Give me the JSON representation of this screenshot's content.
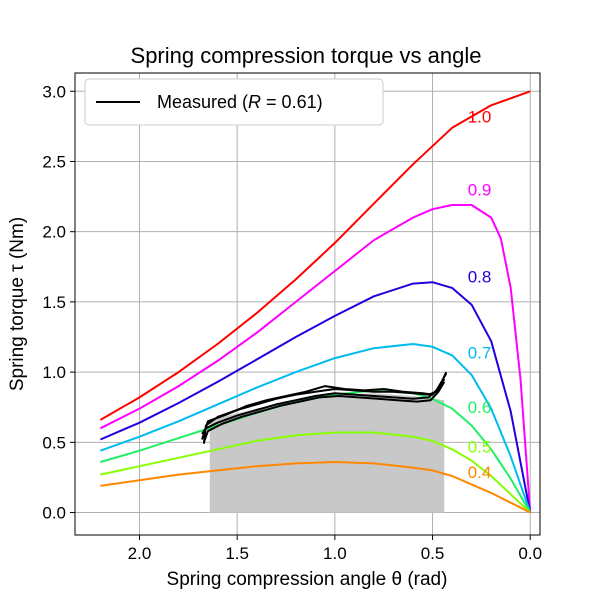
{
  "chart_data": {
    "type": "line",
    "title": "Spring compression torque vs angle",
    "xlabel": "Spring compression angle θ (rad)",
    "ylabel": "Spring torque τ (Nm)",
    "xlim": [
      2.33,
      -0.05
    ],
    "ylim": [
      -0.16,
      3.13
    ],
    "x_inverted": true,
    "grid": true,
    "xticks": [
      2.0,
      1.5,
      1.0,
      0.5,
      0.0
    ],
    "xtick_labels": [
      "2.0",
      "1.5",
      "1.0",
      "0.5",
      "0.0"
    ],
    "yticks": [
      0.0,
      0.5,
      1.0,
      1.5,
      2.0,
      2.5,
      3.0
    ],
    "ytick_labels": [
      "0.0",
      "0.5",
      "1.0",
      "1.5",
      "2.0",
      "2.5",
      "3.0"
    ],
    "legend": {
      "placement": "top-left",
      "entries": [
        {
          "label_prefix": "Measured (",
          "label_var": "R",
          "label_suffix": " = 0.61)",
          "color": "#000000"
        }
      ]
    },
    "series": [
      {
        "label": "1.0",
        "color": "#ff0000",
        "label_x": 0.32,
        "label_y": 2.82,
        "points": [
          [
            2.2,
            0.66
          ],
          [
            2.0,
            0.82
          ],
          [
            1.8,
            1.0
          ],
          [
            1.6,
            1.2
          ],
          [
            1.4,
            1.42
          ],
          [
            1.2,
            1.66
          ],
          [
            1.0,
            1.92
          ],
          [
            0.8,
            2.2
          ],
          [
            0.6,
            2.48
          ],
          [
            0.4,
            2.74
          ],
          [
            0.2,
            2.9
          ],
          [
            0.0,
            3.0
          ]
        ]
      },
      {
        "label": "0.9",
        "color": "#ff00ff",
        "label_x": 0.32,
        "label_y": 2.3,
        "points": [
          [
            2.2,
            0.6
          ],
          [
            2.0,
            0.74
          ],
          [
            1.8,
            0.9
          ],
          [
            1.6,
            1.08
          ],
          [
            1.4,
            1.28
          ],
          [
            1.2,
            1.5
          ],
          [
            1.0,
            1.72
          ],
          [
            0.8,
            1.94
          ],
          [
            0.6,
            2.1
          ],
          [
            0.5,
            2.16
          ],
          [
            0.4,
            2.19
          ],
          [
            0.3,
            2.19
          ],
          [
            0.2,
            2.1
          ],
          [
            0.15,
            1.95
          ],
          [
            0.1,
            1.6
          ],
          [
            0.05,
            0.95
          ],
          [
            0.0,
            0.0
          ]
        ]
      },
      {
        "label": "0.8",
        "color": "#2200dd",
        "label_x": 0.32,
        "label_y": 1.68,
        "points": [
          [
            2.2,
            0.52
          ],
          [
            2.0,
            0.64
          ],
          [
            1.8,
            0.78
          ],
          [
            1.6,
            0.93
          ],
          [
            1.4,
            1.09
          ],
          [
            1.2,
            1.25
          ],
          [
            1.0,
            1.4
          ],
          [
            0.8,
            1.54
          ],
          [
            0.6,
            1.63
          ],
          [
            0.5,
            1.64
          ],
          [
            0.4,
            1.6
          ],
          [
            0.3,
            1.48
          ],
          [
            0.2,
            1.22
          ],
          [
            0.1,
            0.72
          ],
          [
            0.0,
            0.0
          ]
        ]
      },
      {
        "label": "0.7",
        "color": "#00bbee",
        "label_x": 0.32,
        "label_y": 1.14,
        "points": [
          [
            2.2,
            0.44
          ],
          [
            2.0,
            0.54
          ],
          [
            1.8,
            0.65
          ],
          [
            1.6,
            0.77
          ],
          [
            1.4,
            0.89
          ],
          [
            1.2,
            1.0
          ],
          [
            1.0,
            1.1
          ],
          [
            0.8,
            1.17
          ],
          [
            0.6,
            1.2
          ],
          [
            0.5,
            1.18
          ],
          [
            0.4,
            1.12
          ],
          [
            0.3,
            0.98
          ],
          [
            0.2,
            0.74
          ],
          [
            0.1,
            0.4
          ],
          [
            0.0,
            0.0
          ]
        ]
      },
      {
        "label": "0.6",
        "color": "#22ee66",
        "label_x": 0.32,
        "label_y": 0.75,
        "points": [
          [
            2.2,
            0.36
          ],
          [
            2.0,
            0.44
          ],
          [
            1.8,
            0.53
          ],
          [
            1.6,
            0.62
          ],
          [
            1.4,
            0.71
          ],
          [
            1.2,
            0.79
          ],
          [
            1.0,
            0.84
          ],
          [
            0.8,
            0.87
          ],
          [
            0.6,
            0.85
          ],
          [
            0.5,
            0.81
          ],
          [
            0.4,
            0.74
          ],
          [
            0.3,
            0.62
          ],
          [
            0.2,
            0.45
          ],
          [
            0.1,
            0.24
          ],
          [
            0.0,
            0.0
          ]
        ]
      },
      {
        "label": "0.5",
        "color": "#88ff00",
        "label_x": 0.32,
        "label_y": 0.47,
        "points": [
          [
            2.2,
            0.27
          ],
          [
            2.0,
            0.33
          ],
          [
            1.8,
            0.39
          ],
          [
            1.6,
            0.45
          ],
          [
            1.4,
            0.51
          ],
          [
            1.2,
            0.55
          ],
          [
            1.0,
            0.57
          ],
          [
            0.8,
            0.57
          ],
          [
            0.6,
            0.54
          ],
          [
            0.5,
            0.51
          ],
          [
            0.4,
            0.45
          ],
          [
            0.3,
            0.37
          ],
          [
            0.2,
            0.26
          ],
          [
            0.1,
            0.13
          ],
          [
            0.0,
            0.0
          ]
        ]
      },
      {
        "label": "0.4",
        "color": "#ff8800",
        "label_x": 0.32,
        "label_y": 0.29,
        "points": [
          [
            2.2,
            0.19
          ],
          [
            2.0,
            0.23
          ],
          [
            1.8,
            0.27
          ],
          [
            1.6,
            0.3
          ],
          [
            1.4,
            0.33
          ],
          [
            1.2,
            0.35
          ],
          [
            1.0,
            0.36
          ],
          [
            0.8,
            0.35
          ],
          [
            0.6,
            0.32
          ],
          [
            0.5,
            0.3
          ],
          [
            0.4,
            0.26
          ],
          [
            0.3,
            0.2
          ],
          [
            0.2,
            0.14
          ],
          [
            0.1,
            0.07
          ],
          [
            0.0,
            0.0
          ]
        ]
      }
    ],
    "shaded_region": {
      "color": "#c8c8c8",
      "x_from": 1.64,
      "x_to": 0.44,
      "y_from": 0.0,
      "top": [
        [
          1.64,
          0.66
        ],
        [
          1.4,
          0.74
        ],
        [
          1.2,
          0.8
        ],
        [
          1.0,
          0.84
        ],
        [
          0.8,
          0.85
        ],
        [
          0.6,
          0.83
        ],
        [
          0.44,
          0.8
        ]
      ]
    },
    "measured": {
      "name": "Measured",
      "color": "#000000",
      "traces": [
        [
          [
            1.67,
            0.49
          ],
          [
            1.66,
            0.62
          ],
          [
            1.6,
            0.68
          ],
          [
            1.5,
            0.73
          ],
          [
            1.4,
            0.77
          ],
          [
            1.3,
            0.81
          ],
          [
            1.2,
            0.84
          ],
          [
            1.1,
            0.86
          ],
          [
            1.0,
            0.88
          ],
          [
            0.9,
            0.87
          ],
          [
            0.8,
            0.86
          ],
          [
            0.7,
            0.86
          ],
          [
            0.6,
            0.85
          ],
          [
            0.52,
            0.84
          ],
          [
            0.48,
            0.86
          ],
          [
            0.46,
            0.9
          ],
          [
            0.44,
            0.97
          ],
          [
            0.43,
            1.0
          ]
        ],
        [
          [
            0.43,
            0.99
          ],
          [
            0.45,
            0.94
          ],
          [
            0.48,
            0.87
          ],
          [
            0.52,
            0.82
          ],
          [
            0.6,
            0.81
          ],
          [
            0.7,
            0.82
          ],
          [
            0.8,
            0.83
          ],
          [
            0.9,
            0.84
          ],
          [
            1.0,
            0.85
          ],
          [
            1.1,
            0.83
          ],
          [
            1.2,
            0.8
          ],
          [
            1.3,
            0.77
          ],
          [
            1.4,
            0.73
          ],
          [
            1.5,
            0.69
          ],
          [
            1.6,
            0.64
          ],
          [
            1.66,
            0.6
          ],
          [
            1.68,
            0.56
          ]
        ],
        [
          [
            1.68,
            0.52
          ],
          [
            1.65,
            0.65
          ],
          [
            1.55,
            0.7
          ],
          [
            1.45,
            0.76
          ],
          [
            1.35,
            0.8
          ],
          [
            1.25,
            0.83
          ],
          [
            1.15,
            0.86
          ],
          [
            1.05,
            0.9
          ],
          [
            0.95,
            0.88
          ],
          [
            0.85,
            0.87
          ],
          [
            0.75,
            0.88
          ],
          [
            0.65,
            0.86
          ],
          [
            0.55,
            0.85
          ],
          [
            0.5,
            0.84
          ],
          [
            0.47,
            0.88
          ],
          [
            0.44,
            0.95
          ]
        ],
        [
          [
            0.44,
            0.93
          ],
          [
            0.47,
            0.86
          ],
          [
            0.51,
            0.8
          ],
          [
            0.58,
            0.79
          ],
          [
            0.68,
            0.8
          ],
          [
            0.78,
            0.81
          ],
          [
            0.88,
            0.82
          ],
          [
            0.98,
            0.83
          ],
          [
            1.08,
            0.82
          ],
          [
            1.18,
            0.79
          ],
          [
            1.28,
            0.76
          ],
          [
            1.38,
            0.72
          ],
          [
            1.48,
            0.68
          ],
          [
            1.58,
            0.63
          ],
          [
            1.65,
            0.58
          ],
          [
            1.67,
            0.5
          ]
        ]
      ]
    }
  }
}
